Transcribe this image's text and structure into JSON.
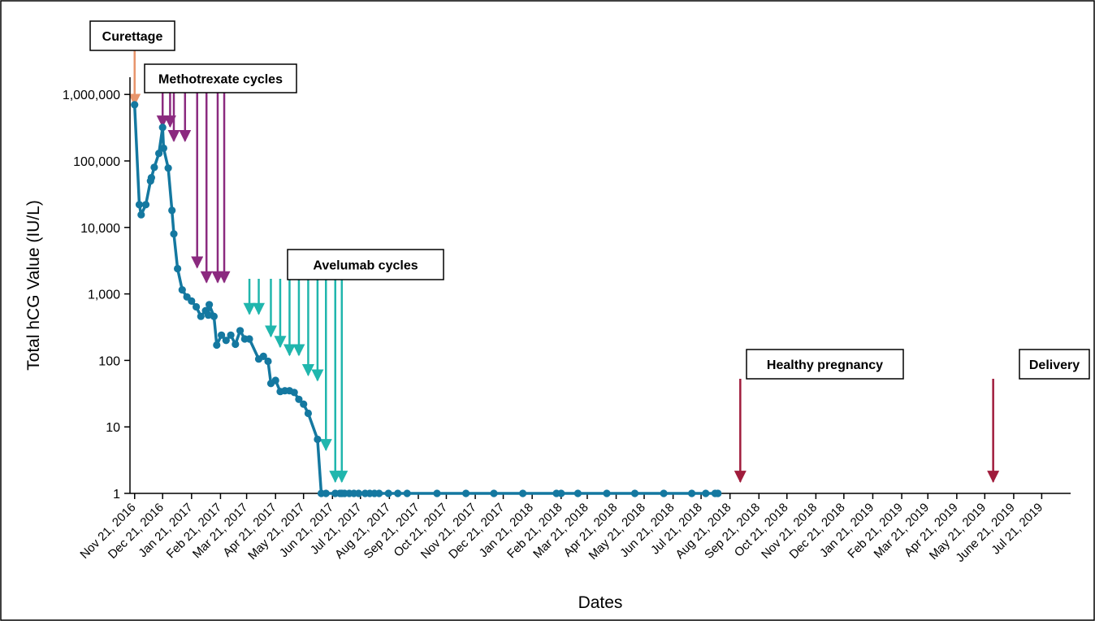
{
  "chart_data": {
    "type": "line",
    "xlabel": "Dates",
    "ylabel": "Total hCG Value (IU/L)",
    "y_scale": "log",
    "ylim": [
      1,
      3000000
    ],
    "xlim": [
      "2016-11-16",
      "2019-08-21"
    ],
    "yticks": [
      {
        "value": 1,
        "label": "1"
      },
      {
        "value": 10,
        "label": "10"
      },
      {
        "value": 100,
        "label": "100"
      },
      {
        "value": 1000,
        "label": "1,000"
      },
      {
        "value": 10000,
        "label": "10,000"
      },
      {
        "value": 100000,
        "label": "100,000"
      },
      {
        "value": 1000000,
        "label": "1,000,000"
      }
    ],
    "xticks": [
      {
        "date": "2016-11-21",
        "label": "Nov 21, 2016"
      },
      {
        "date": "2016-12-21",
        "label": "Dec 21, 2016"
      },
      {
        "date": "2017-01-21",
        "label": "Jan 21, 2017"
      },
      {
        "date": "2017-02-21",
        "label": "Feb 21, 2017"
      },
      {
        "date": "2017-03-21",
        "label": "Mar 21, 2017"
      },
      {
        "date": "2017-04-21",
        "label": "Apr 21, 2017"
      },
      {
        "date": "2017-05-21",
        "label": "May 21, 2017"
      },
      {
        "date": "2017-06-21",
        "label": "Jun 21, 2017"
      },
      {
        "date": "2017-07-21",
        "label": "Jul 21, 2017"
      },
      {
        "date": "2017-08-21",
        "label": "Aug 21, 2017"
      },
      {
        "date": "2017-09-21",
        "label": "Sep 21, 2017"
      },
      {
        "date": "2017-10-21",
        "label": "Oct 21, 2017"
      },
      {
        "date": "2017-11-21",
        "label": "Nov 21, 2017"
      },
      {
        "date": "2017-12-21",
        "label": "Dec 21, 2017"
      },
      {
        "date": "2018-01-21",
        "label": "Jan 21, 2018"
      },
      {
        "date": "2018-02-21",
        "label": "Feb 21, 2018"
      },
      {
        "date": "2018-03-21",
        "label": "Mar 21, 2018"
      },
      {
        "date": "2018-04-21",
        "label": "Apr 21, 2018"
      },
      {
        "date": "2018-05-21",
        "label": "May 21, 2018"
      },
      {
        "date": "2018-06-21",
        "label": "Jun 21, 2018"
      },
      {
        "date": "2018-07-21",
        "label": "Jul 21, 2018"
      },
      {
        "date": "2018-08-21",
        "label": "Aug 21, 2018"
      },
      {
        "date": "2018-09-21",
        "label": "Sep 21, 2018"
      },
      {
        "date": "2018-10-21",
        "label": "Oct 21, 2018"
      },
      {
        "date": "2018-11-21",
        "label": "Nov 21, 2018"
      },
      {
        "date": "2018-12-21",
        "label": "Dec 21, 2018"
      },
      {
        "date": "2019-01-21",
        "label": "Jan 21, 2019"
      },
      {
        "date": "2019-02-21",
        "label": "Feb 21, 2019"
      },
      {
        "date": "2019-03-21",
        "label": "Mar 21, 2019"
      },
      {
        "date": "2019-04-21",
        "label": "Apr 21, 2019"
      },
      {
        "date": "2019-05-21",
        "label": "May 21, 2019"
      },
      {
        "date": "2019-06-21",
        "label": "June 21, 2019"
      },
      {
        "date": "2019-07-21",
        "label": "Jul 21, 2019"
      }
    ],
    "grid": false,
    "series": [
      {
        "color": "#1478a0",
        "points": [
          [
            "2016-11-21",
            700000
          ],
          [
            "2016-11-26",
            22000
          ],
          [
            "2016-11-28",
            15500
          ],
          [
            "2016-12-03",
            22000
          ],
          [
            "2016-12-08",
            50000
          ],
          [
            "2016-12-09",
            56000
          ],
          [
            "2016-12-12",
            80000
          ],
          [
            "2016-12-17",
            130000
          ],
          [
            "2016-12-21",
            320000
          ],
          [
            "2016-12-22",
            155000
          ],
          [
            "2016-12-27",
            78000
          ],
          [
            "2016-12-31",
            18000
          ],
          [
            "2017-01-02",
            8000
          ],
          [
            "2017-01-06",
            2400
          ],
          [
            "2017-01-11",
            1150
          ],
          [
            "2017-01-16",
            900
          ],
          [
            "2017-01-21",
            780
          ],
          [
            "2017-01-26",
            640
          ],
          [
            "2017-01-31",
            460
          ],
          [
            "2017-02-05",
            560
          ],
          [
            "2017-02-08",
            480
          ],
          [
            "2017-02-09",
            690
          ],
          [
            "2017-02-14",
            460
          ],
          [
            "2017-02-17",
            170
          ],
          [
            "2017-02-22",
            240
          ],
          [
            "2017-02-27",
            200
          ],
          [
            "2017-03-04",
            240
          ],
          [
            "2017-03-09",
            175
          ],
          [
            "2017-03-14",
            280
          ],
          [
            "2017-03-19",
            210
          ],
          [
            "2017-03-24",
            210
          ],
          [
            "2017-04-03",
            105
          ],
          [
            "2017-04-08",
            115
          ],
          [
            "2017-04-13",
            97
          ],
          [
            "2017-04-16",
            45
          ],
          [
            "2017-04-21",
            50
          ],
          [
            "2017-04-26",
            34
          ],
          [
            "2017-05-01",
            35
          ],
          [
            "2017-05-06",
            35
          ],
          [
            "2017-05-11",
            33
          ],
          [
            "2017-05-16",
            26
          ],
          [
            "2017-05-21",
            22
          ],
          [
            "2017-05-26",
            16
          ],
          [
            "2017-06-05",
            6.5
          ],
          [
            "2017-06-09",
            1
          ],
          [
            "2017-06-14",
            1
          ],
          [
            "2017-06-24",
            1
          ],
          [
            "2017-06-29",
            1
          ],
          [
            "2017-07-01",
            1
          ],
          [
            "2017-07-04",
            1
          ],
          [
            "2017-07-09",
            1
          ],
          [
            "2017-07-14",
            1
          ],
          [
            "2017-07-19",
            1
          ],
          [
            "2017-07-26",
            1
          ],
          [
            "2017-07-31",
            1
          ],
          [
            "2017-08-05",
            1
          ],
          [
            "2017-08-10",
            1
          ],
          [
            "2017-08-20",
            1
          ],
          [
            "2017-08-30",
            1
          ],
          [
            "2017-09-09",
            1
          ],
          [
            "2017-10-11",
            1
          ],
          [
            "2017-11-11",
            1
          ],
          [
            "2017-12-11",
            1
          ],
          [
            "2018-01-11",
            1
          ],
          [
            "2018-02-16",
            1
          ],
          [
            "2018-02-21",
            1
          ],
          [
            "2018-03-11",
            1
          ],
          [
            "2018-04-11",
            1
          ],
          [
            "2018-05-11",
            1
          ],
          [
            "2018-06-11",
            1
          ],
          [
            "2018-07-11",
            1
          ],
          [
            "2018-07-26",
            1
          ],
          [
            "2018-08-05",
            1
          ],
          [
            "2018-08-08",
            1
          ]
        ]
      }
    ],
    "annotations": [
      {
        "label": "Curettage",
        "color": "#e8956c",
        "arrows": [
          {
            "date": "2016-11-21",
            "end_value": 700000
          }
        ]
      },
      {
        "label": "Methotrexate cycles",
        "color": "#8b2a7f",
        "arrows": [
          {
            "date": "2016-12-21",
            "end_value": 330000
          },
          {
            "date": "2016-12-29",
            "end_value": 330000
          },
          {
            "date": "2017-01-02",
            "end_value": 200000
          },
          {
            "date": "2017-01-14",
            "end_value": 200000
          },
          {
            "date": "2017-01-27",
            "end_value": 2500
          },
          {
            "date": "2017-02-06",
            "end_value": 1500
          },
          {
            "date": "2017-02-18",
            "end_value": 1500
          },
          {
            "date": "2017-02-25",
            "end_value": 1500
          }
        ]
      },
      {
        "label": "Avelumab cycles",
        "color": "#20b6ad",
        "arrows": [
          {
            "date": "2017-03-24",
            "end_value": 500
          },
          {
            "date": "2017-04-03",
            "end_value": 500
          },
          {
            "date": "2017-04-16",
            "end_value": 230
          },
          {
            "date": "2017-04-26",
            "end_value": 160
          },
          {
            "date": "2017-05-06",
            "end_value": 120
          },
          {
            "date": "2017-05-16",
            "end_value": 120
          },
          {
            "date": "2017-05-26",
            "end_value": 60
          },
          {
            "date": "2017-06-05",
            "end_value": 50
          },
          {
            "date": "2017-06-14",
            "end_value": 4.5
          },
          {
            "date": "2017-06-24",
            "end_value": 1.5
          },
          {
            "date": "2017-07-01",
            "end_value": 1.5
          }
        ]
      },
      {
        "label": "Healthy pregnancy",
        "color": "#a01c3c",
        "arrows": [
          {
            "date": "2018-09-01",
            "end_value": 1.5
          }
        ]
      },
      {
        "label": "Delivery",
        "color": "#a01c3c",
        "arrows": [
          {
            "date": "2019-05-30",
            "end_value": 1.5
          }
        ]
      }
    ]
  }
}
